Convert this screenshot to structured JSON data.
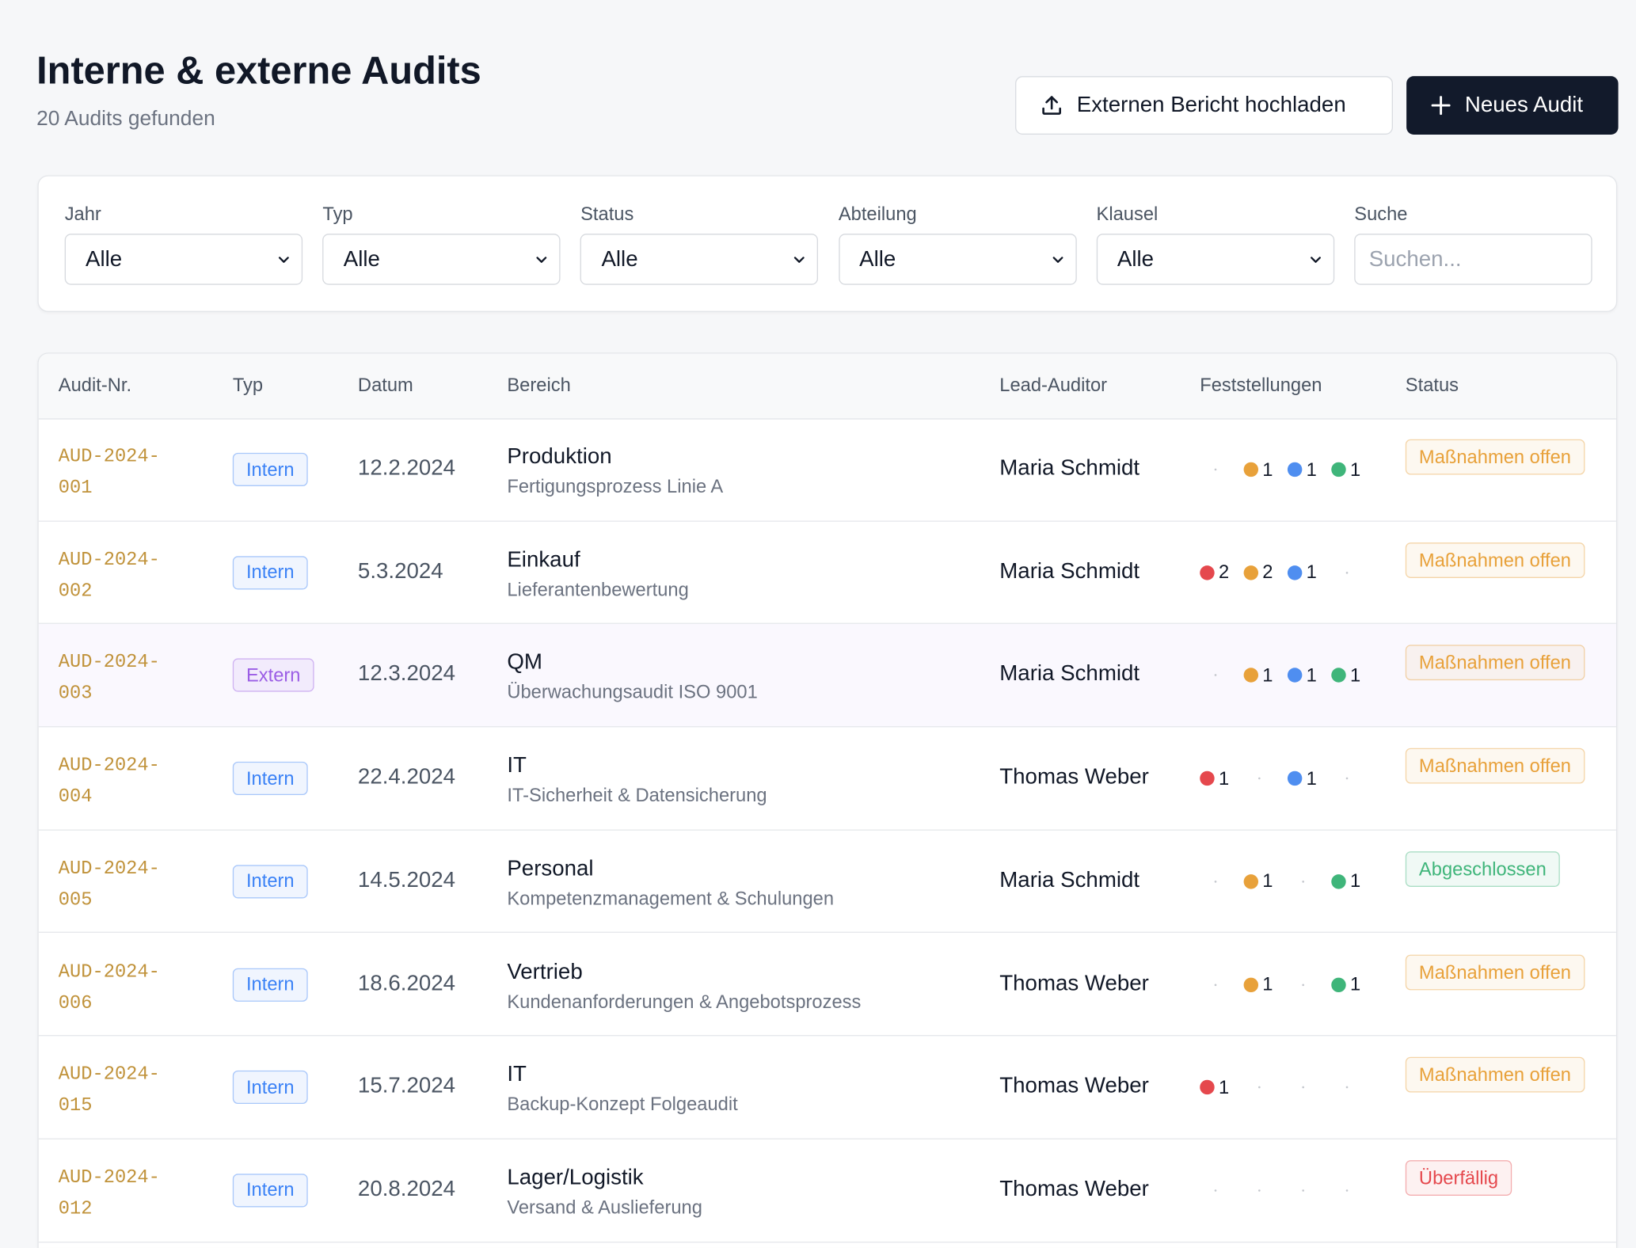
{
  "header": {
    "title": "Interne & externe Audits",
    "subtitle": "20 Audits gefunden"
  },
  "buttons": {
    "upload": "Externen Bericht hochladen",
    "new": "Neues Audit"
  },
  "filters": [
    {
      "label": "Jahr",
      "value": "Alle"
    },
    {
      "label": "Typ",
      "value": "Alle"
    },
    {
      "label": "Status",
      "value": "Alle"
    },
    {
      "label": "Abteilung",
      "value": "Alle"
    },
    {
      "label": "Klausel",
      "value": "Alle"
    },
    {
      "label": "Suche",
      "placeholder": "Suchen..."
    }
  ],
  "table": {
    "columns": [
      "Audit-Nr.",
      "Typ",
      "Datum",
      "Bereich",
      "Lead-Auditor",
      "Feststellungen",
      "Status"
    ],
    "finding_colors": [
      "#e5484d",
      "#e8a13a",
      "#4f8ef0",
      "#3fb57a"
    ],
    "rows": [
      {
        "id": "AUD-2024-001",
        "type": {
          "label": "Intern",
          "color": "#3b82f6"
        },
        "date": "12.2.2024",
        "area": "Produktion",
        "subarea": "Fertigungsprozess Linie A",
        "auditor": "Maria Schmidt",
        "findings": [
          null,
          1,
          1,
          1
        ],
        "status": {
          "label": "Maßnahmen offen",
          "color": "#e8a13a"
        }
      },
      {
        "id": "AUD-2024-002",
        "type": {
          "label": "Intern",
          "color": "#3b82f6"
        },
        "date": "5.3.2024",
        "area": "Einkauf",
        "subarea": "Lieferantenbewertung",
        "auditor": "Maria Schmidt",
        "findings": [
          2,
          2,
          1,
          null
        ],
        "status": {
          "label": "Maßnahmen offen",
          "color": "#e8a13a"
        }
      },
      {
        "id": "AUD-2024-003",
        "type": {
          "label": "Extern",
          "color": "#9b5de5"
        },
        "date": "12.3.2024",
        "area": "QM",
        "subarea": "Überwachungsaudit ISO 9001",
        "auditor": "Maria Schmidt",
        "findings": [
          null,
          1,
          1,
          1
        ],
        "status": {
          "label": "Maßnahmen offen",
          "color": "#e8a13a"
        }
      },
      {
        "id": "AUD-2024-004",
        "type": {
          "label": "Intern",
          "color": "#3b82f6"
        },
        "date": "22.4.2024",
        "area": "IT",
        "subarea": "IT-Sicherheit & Datensicherung",
        "auditor": "Thomas Weber",
        "findings": [
          1,
          null,
          1,
          null
        ],
        "status": {
          "label": "Maßnahmen offen",
          "color": "#e8a13a"
        }
      },
      {
        "id": "AUD-2024-005",
        "type": {
          "label": "Intern",
          "color": "#3b82f6"
        },
        "date": "14.5.2024",
        "area": "Personal",
        "subarea": "Kompetenzmanagement & Schulungen",
        "auditor": "Maria Schmidt",
        "findings": [
          null,
          1,
          null,
          1
        ],
        "status": {
          "label": "Abgeschlossen",
          "color": "#3fb57a"
        }
      },
      {
        "id": "AUD-2024-006",
        "type": {
          "label": "Intern",
          "color": "#3b82f6"
        },
        "date": "18.6.2024",
        "area": "Vertrieb",
        "subarea": "Kundenanforderungen & Angebotsprozess",
        "auditor": "Thomas Weber",
        "findings": [
          null,
          1,
          null,
          1
        ],
        "status": {
          "label": "Maßnahmen offen",
          "color": "#e8a13a"
        }
      },
      {
        "id": "AUD-2024-015",
        "type": {
          "label": "Intern",
          "color": "#3b82f6"
        },
        "date": "15.7.2024",
        "area": "IT",
        "subarea": "Backup-Konzept Folgeaudit",
        "auditor": "Thomas Weber",
        "findings": [
          1,
          null,
          null,
          null
        ],
        "status": {
          "label": "Maßnahmen offen",
          "color": "#e8a13a"
        }
      },
      {
        "id": "AUD-2024-012",
        "type": {
          "label": "Intern",
          "color": "#3b82f6"
        },
        "date": "20.8.2024",
        "area": "Lager/Logistik",
        "subarea": "Versand & Auslieferung",
        "auditor": "Thomas Weber",
        "findings": [
          null,
          null,
          null,
          null
        ],
        "status": {
          "label": "Überfällig",
          "color": "#e5484d"
        }
      }
    ]
  }
}
